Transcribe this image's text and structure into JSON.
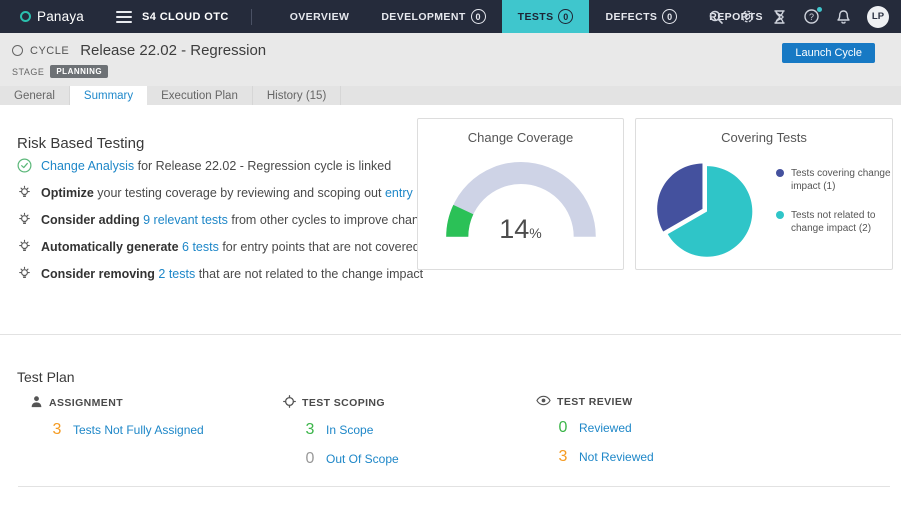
{
  "colors": {
    "topbar_bg": "#252b3b",
    "accent_teal": "#3fc6cd",
    "link_blue": "#1e87c8",
    "button_blue": "#1779c4",
    "gauge_track": "#ced3e6",
    "gauge_fill": "#2bc157",
    "pie_primary": "#44519e",
    "pie_secondary": "#2fc5c8",
    "stat_orange": "#f59b22",
    "stat_green": "#3cb54a",
    "stat_gray": "#9a9a9a"
  },
  "topbar": {
    "logo_text": "Panaya",
    "workspace": "S4 CLOUD OTC",
    "nav": [
      {
        "label": "OVERVIEW",
        "badge": null,
        "active": false
      },
      {
        "label": "DEVELOPMENT",
        "badge": "0",
        "active": false
      },
      {
        "label": "TESTS",
        "badge": "0",
        "active": true
      },
      {
        "label": "DEFECTS",
        "badge": "0",
        "active": false
      },
      {
        "label": "REPORTS",
        "badge": null,
        "active": false
      }
    ],
    "avatar_initials": "LP"
  },
  "cycle_header": {
    "entity_label": "CYCLE",
    "title": "Release 22.02 - Regression",
    "stage_label": "STAGE",
    "stage_value": "PLANNING",
    "launch_button_label": "Launch Cycle"
  },
  "tabs": [
    {
      "label": "General",
      "active": false
    },
    {
      "label": "Summary",
      "active": true
    },
    {
      "label": "Execution Plan",
      "active": false
    },
    {
      "label": "History (15)",
      "active": false
    }
  ],
  "risk_based_testing": {
    "title": "Risk Based Testing",
    "items": [
      {
        "icon": "check-circle-icon",
        "segments": [
          {
            "text": "Change Analysis",
            "style": "link"
          },
          {
            "text": " for Release 22.02 - Regression cycle is linked",
            "style": "plain"
          }
        ]
      },
      {
        "icon": "lightbulb-icon",
        "segments": [
          {
            "text": "Optimize",
            "style": "bold"
          },
          {
            "text": " your testing coverage by reviewing and scoping out ",
            "style": "plain"
          },
          {
            "text": "entry points",
            "style": "link"
          }
        ]
      },
      {
        "icon": "lightbulb-icon",
        "segments": [
          {
            "text": "Consider adding",
            "style": "bold"
          },
          {
            "text": " ",
            "style": "plain"
          },
          {
            "text": "9 relevant tests",
            "style": "link"
          },
          {
            "text": " from other cycles to improve change coverage",
            "style": "plain"
          }
        ]
      },
      {
        "icon": "lightbulb-icon",
        "segments": [
          {
            "text": "Automatically generate",
            "style": "bold"
          },
          {
            "text": " ",
            "style": "plain"
          },
          {
            "text": "6 tests",
            "style": "link"
          },
          {
            "text": " for entry points that are not covered by any test",
            "style": "plain"
          }
        ]
      },
      {
        "icon": "lightbulb-icon",
        "segments": [
          {
            "text": "Consider removing",
            "style": "bold"
          },
          {
            "text": " ",
            "style": "plain"
          },
          {
            "text": "2 tests",
            "style": "link"
          },
          {
            "text": " that are not related to the change impact",
            "style": "plain"
          }
        ]
      }
    ]
  },
  "chart_data": [
    {
      "type": "gauge",
      "title": "Change Coverage",
      "value_pct": 14,
      "range": [
        0,
        100
      ],
      "fill_color": "#2bc157",
      "track_color": "#ced3e6"
    },
    {
      "type": "pie",
      "title": "Covering Tests",
      "slices": [
        {
          "label": "Tests covering change impact (1)",
          "value": 1,
          "color": "#44519e",
          "exploded": true
        },
        {
          "label": "Tests not related to change impact (2)",
          "value": 2,
          "color": "#2fc5c8",
          "exploded": false
        }
      ],
      "legend_position": "right"
    }
  ],
  "test_plan": {
    "title": "Test Plan",
    "columns": [
      {
        "icon": "person-icon",
        "heading": "ASSIGNMENT",
        "stats": [
          {
            "value": "3",
            "color": "orange",
            "label": "Tests Not Fully Assigned"
          }
        ]
      },
      {
        "icon": "scope-icon",
        "heading": "TEST SCOPING",
        "stats": [
          {
            "value": "3",
            "color": "green",
            "label": "In Scope"
          },
          {
            "value": "0",
            "color": "gray",
            "label": "Out Of Scope"
          }
        ]
      },
      {
        "icon": "eye-icon",
        "heading": "TEST REVIEW",
        "stats": [
          {
            "value": "0",
            "color": "green",
            "label": "Reviewed"
          },
          {
            "value": "3",
            "color": "orange",
            "label": "Not Reviewed"
          }
        ]
      }
    ]
  }
}
